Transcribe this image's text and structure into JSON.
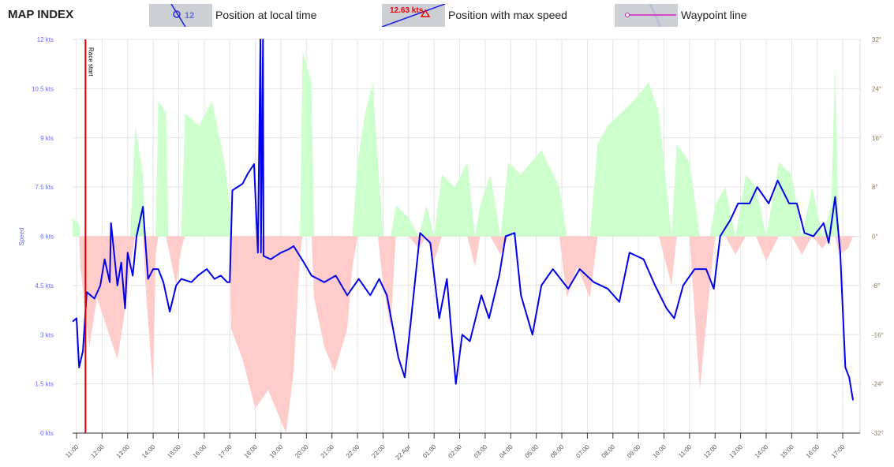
{
  "header": {
    "title": "MAP INDEX",
    "legend": [
      {
        "label": "Position at local time",
        "sample": "12"
      },
      {
        "label": "Position with max speed",
        "sample": "12.63 kts"
      },
      {
        "label": "Waypoint line"
      }
    ]
  },
  "colors": {
    "speed": "#0000ee",
    "race_start": "#e00000",
    "positive": "#ccffcc",
    "negative": "#ffcccc"
  },
  "chart_data": {
    "type": "line",
    "x_unit": "hours since 11:00",
    "ylabel": "Speed",
    "y_ticks": [
      "0 kts",
      "1.5 kts",
      "3 kts",
      "4.5 kts",
      "6 kts",
      "7.5 kts",
      "9 kts",
      "10.5 kts",
      "12 kts"
    ],
    "ylim": [
      0,
      12
    ],
    "y2_ticks": [
      "-32°",
      "-24°",
      "-16°",
      "-8°",
      "0°",
      "8°",
      "16°",
      "24°",
      "32°"
    ],
    "y2lim": [
      -32,
      32
    ],
    "x_ticks": [
      "11:00",
      "12:00",
      "13:00",
      "14:00",
      "15:00",
      "16:00",
      "17:00",
      "18:00",
      "19:00",
      "20:00",
      "21:00",
      "22:00",
      "23:00",
      "22 Apr",
      "01:00",
      "02:00",
      "03:00",
      "04:00",
      "05:00",
      "06:00",
      "07:00",
      "08:00",
      "09:00",
      "10:00",
      "11:00",
      "12:00",
      "13:00",
      "14:00",
      "15:00",
      "16:00",
      "17:00"
    ],
    "annotation": {
      "label": "Race start",
      "x": 0.35
    },
    "speed": [
      [
        -0.15,
        3.4
      ],
      [
        0,
        3.5
      ],
      [
        0.1,
        2.0
      ],
      [
        0.25,
        2.5
      ],
      [
        0.4,
        4.3
      ],
      [
        0.7,
        4.1
      ],
      [
        0.93,
        4.5
      ],
      [
        1.1,
        5.3
      ],
      [
        1.3,
        4.6
      ],
      [
        1.35,
        6.4
      ],
      [
        1.6,
        4.5
      ],
      [
        1.75,
        5.2
      ],
      [
        1.9,
        3.8
      ],
      [
        2.0,
        5.5
      ],
      [
        2.2,
        4.8
      ],
      [
        2.35,
        6.0
      ],
      [
        2.6,
        6.9
      ],
      [
        2.8,
        4.7
      ],
      [
        3.0,
        5.0
      ],
      [
        3.2,
        5.0
      ],
      [
        3.4,
        4.6
      ],
      [
        3.65,
        3.7
      ],
      [
        3.9,
        4.5
      ],
      [
        4.1,
        4.7
      ],
      [
        4.5,
        4.6
      ],
      [
        4.75,
        4.8
      ],
      [
        5.1,
        5.0
      ],
      [
        5.4,
        4.7
      ],
      [
        5.65,
        4.8
      ],
      [
        5.9,
        4.6
      ],
      [
        6.0,
        4.6
      ],
      [
        6.1,
        7.4
      ],
      [
        6.3,
        7.5
      ],
      [
        6.5,
        7.6
      ],
      [
        6.7,
        7.9
      ],
      [
        6.95,
        8.2
      ],
      [
        7.1,
        5.5
      ],
      [
        7.2,
        12.5
      ],
      [
        7.22,
        5.5
      ],
      [
        7.3,
        12.5
      ],
      [
        7.32,
        5.4
      ],
      [
        7.6,
        5.3
      ],
      [
        8.0,
        5.5
      ],
      [
        8.3,
        5.6
      ],
      [
        8.5,
        5.7
      ],
      [
        8.9,
        5.2
      ],
      [
        9.2,
        4.8
      ],
      [
        9.7,
        4.6
      ],
      [
        10.15,
        4.8
      ],
      [
        10.6,
        4.2
      ],
      [
        11.05,
        4.7
      ],
      [
        11.5,
        4.2
      ],
      [
        11.85,
        4.7
      ],
      [
        12.15,
        4.2
      ],
      [
        12.6,
        2.3
      ],
      [
        12.85,
        1.7
      ],
      [
        13.1,
        3.5
      ],
      [
        13.45,
        6.1
      ],
      [
        13.85,
        5.8
      ],
      [
        14.2,
        3.5
      ],
      [
        14.5,
        4.7
      ],
      [
        14.85,
        1.5
      ],
      [
        15.1,
        3.0
      ],
      [
        15.4,
        2.8
      ],
      [
        15.85,
        4.2
      ],
      [
        16.15,
        3.5
      ],
      [
        16.55,
        4.8
      ],
      [
        16.8,
        6.0
      ],
      [
        17.15,
        6.1
      ],
      [
        17.4,
        4.2
      ],
      [
        17.85,
        3.0
      ],
      [
        18.2,
        4.5
      ],
      [
        18.65,
        5.0
      ],
      [
        19.25,
        4.4
      ],
      [
        19.7,
        5.0
      ],
      [
        20.25,
        4.6
      ],
      [
        20.8,
        4.4
      ],
      [
        21.25,
        4.0
      ],
      [
        21.65,
        5.5
      ],
      [
        22.2,
        5.3
      ],
      [
        22.65,
        4.5
      ],
      [
        23.1,
        3.8
      ],
      [
        23.4,
        3.5
      ],
      [
        23.75,
        4.5
      ],
      [
        24.2,
        5.0
      ],
      [
        24.65,
        5.0
      ],
      [
        24.95,
        4.4
      ],
      [
        25.2,
        6.0
      ],
      [
        25.6,
        6.5
      ],
      [
        25.9,
        7.0
      ],
      [
        26.35,
        7.0
      ],
      [
        26.65,
        7.5
      ],
      [
        27.1,
        7.0
      ],
      [
        27.45,
        7.7
      ],
      [
        27.9,
        7.0
      ],
      [
        28.2,
        7.0
      ],
      [
        28.5,
        6.1
      ],
      [
        28.85,
        6.0
      ],
      [
        29.25,
        6.4
      ],
      [
        29.45,
        5.8
      ],
      [
        29.7,
        7.2
      ],
      [
        29.9,
        5.5
      ],
      [
        30.1,
        2.0
      ],
      [
        30.25,
        1.7
      ],
      [
        30.4,
        1.0
      ]
    ],
    "wind_angle": [
      [
        -0.15,
        3
      ],
      [
        0.1,
        2
      ],
      [
        0.15,
        -5
      ],
      [
        0.5,
        -18
      ],
      [
        0.8,
        -10
      ],
      [
        1.2,
        -15
      ],
      [
        1.6,
        -20
      ],
      [
        1.9,
        -12
      ],
      [
        2.1,
        -5
      ],
      [
        2.3,
        18
      ],
      [
        2.6,
        10
      ],
      [
        2.7,
        -8
      ],
      [
        3.0,
        -25
      ],
      [
        3.1,
        -3
      ],
      [
        3.2,
        22
      ],
      [
        3.5,
        20
      ],
      [
        3.6,
        -2
      ],
      [
        3.9,
        -8
      ],
      [
        4.1,
        -2
      ],
      [
        4.25,
        20
      ],
      [
        4.8,
        18
      ],
      [
        5.3,
        22
      ],
      [
        5.8,
        12
      ],
      [
        6.0,
        5
      ],
      [
        6.05,
        -15
      ],
      [
        6.5,
        -20
      ],
      [
        7.0,
        -28
      ],
      [
        7.5,
        -25
      ],
      [
        8.0,
        -30
      ],
      [
        8.2,
        -32
      ],
      [
        8.5,
        -22
      ],
      [
        8.75,
        -3
      ],
      [
        8.85,
        30
      ],
      [
        9.2,
        25
      ],
      [
        9.3,
        -10
      ],
      [
        9.7,
        -18
      ],
      [
        10.1,
        -22
      ],
      [
        10.6,
        -15
      ],
      [
        10.8,
        -5
      ],
      [
        11.0,
        12
      ],
      [
        11.3,
        20
      ],
      [
        11.6,
        25
      ],
      [
        11.8,
        12
      ],
      [
        12.0,
        -8
      ],
      [
        12.3,
        -15
      ],
      [
        12.5,
        5
      ],
      [
        13.0,
        3
      ],
      [
        13.4,
        -2
      ],
      [
        13.7,
        5
      ],
      [
        14.0,
        -4
      ],
      [
        14.3,
        10
      ],
      [
        14.8,
        8
      ],
      [
        15.3,
        12
      ],
      [
        15.6,
        -5
      ],
      [
        15.8,
        5
      ],
      [
        16.2,
        10
      ],
      [
        16.6,
        -3
      ],
      [
        16.9,
        12
      ],
      [
        17.4,
        10
      ],
      [
        18.2,
        14
      ],
      [
        18.9,
        8
      ],
      [
        19.2,
        -10
      ],
      [
        19.6,
        -5
      ],
      [
        20.1,
        -10
      ],
      [
        20.4,
        15
      ],
      [
        20.8,
        18
      ],
      [
        21.3,
        20
      ],
      [
        21.8,
        22
      ],
      [
        22.4,
        25
      ],
      [
        22.8,
        20
      ],
      [
        23.3,
        -8
      ],
      [
        23.5,
        15
      ],
      [
        24.0,
        12
      ],
      [
        24.4,
        -25
      ],
      [
        24.8,
        -8
      ],
      [
        25.0,
        5
      ],
      [
        25.4,
        8
      ],
      [
        25.8,
        -3
      ],
      [
        26.2,
        10
      ],
      [
        26.6,
        8
      ],
      [
        27.0,
        -4
      ],
      [
        27.5,
        12
      ],
      [
        28.0,
        10
      ],
      [
        28.4,
        -3
      ],
      [
        28.8,
        8
      ],
      [
        29.2,
        -2
      ],
      [
        29.55,
        5
      ],
      [
        29.7,
        28
      ],
      [
        29.85,
        -3
      ],
      [
        30.2,
        -2
      ],
      [
        30.4,
        0
      ]
    ]
  }
}
